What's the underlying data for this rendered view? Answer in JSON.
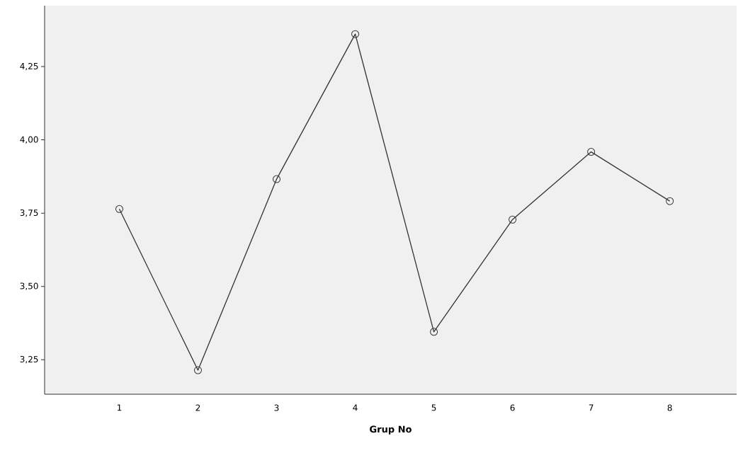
{
  "chart_data": {
    "type": "line",
    "xlabel": "Grup No",
    "categories": [
      "1",
      "2",
      "3",
      "4",
      "5",
      "6",
      "7",
      "8"
    ],
    "series": [
      {
        "color": "#333333",
        "values": [
          3.764,
          3.214,
          3.866,
          4.361,
          3.345,
          3.728,
          3.959,
          3.791
        ]
      }
    ],
    "ylim": [
      3.132,
      4.458
    ],
    "yticks": [
      {
        "value": 3.25,
        "label": "3,25"
      },
      {
        "value": 3.5,
        "label": "3,50"
      },
      {
        "value": 3.75,
        "label": "3,75"
      },
      {
        "value": 4.0,
        "label": "4,00"
      },
      {
        "value": 4.25,
        "label": "4,25"
      }
    ],
    "marker": "circle",
    "line_style": "solid"
  }
}
